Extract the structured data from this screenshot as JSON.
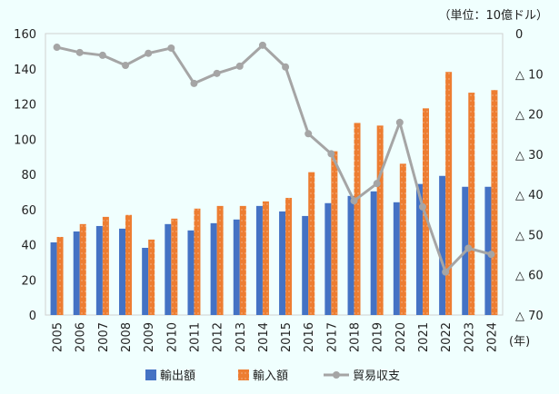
{
  "chart_data": {
    "type": "bar+line",
    "unit_label": "（単位：10億ドル）",
    "x_unit_label": "(年)",
    "categories": [
      "2005",
      "2006",
      "2007",
      "2008",
      "2009",
      "2010",
      "2011",
      "2012",
      "2013",
      "2014",
      "2015",
      "2016",
      "2017",
      "2018",
      "2019",
      "2020",
      "2021",
      "2022",
      "2023",
      "2024"
    ],
    "series": [
      {
        "name": "輸出額",
        "type": "bar",
        "axis": "left",
        "color": "#4472c4",
        "values": [
          41.3,
          47.5,
          50.6,
          49.1,
          38.2,
          51.7,
          48.1,
          52.2,
          54.3,
          62.0,
          58.9,
          56.3,
          63.6,
          67.7,
          70.3,
          64.1,
          74.5,
          79.1,
          72.9,
          72.9
        ]
      },
      {
        "name": "輸入額",
        "type": "bar",
        "axis": "left",
        "color": "#ed7d31",
        "values": [
          44.4,
          51.7,
          55.8,
          56.9,
          42.9,
          54.8,
          60.5,
          62.0,
          62.0,
          64.6,
          66.6,
          81.2,
          93.1,
          109.2,
          107.7,
          86.0,
          117.5,
          138.2,
          126.4,
          127.9
        ]
      },
      {
        "name": "貿易収支",
        "type": "line",
        "axis": "right",
        "color": "#a5a5a5",
        "values": [
          -3.4,
          -4.7,
          -5.4,
          -7.9,
          -4.9,
          -3.6,
          -12.4,
          -9.9,
          -8.1,
          -2.9,
          -8.3,
          -24.9,
          -29.9,
          -41.6,
          -37.3,
          -22.1,
          -43.1,
          -59.3,
          -53.4,
          -54.9
        ]
      }
    ],
    "left_axis": {
      "ylim": [
        0,
        160
      ],
      "ticks": [
        "0",
        "20",
        "40",
        "60",
        "80",
        "100",
        "120",
        "140",
        "160"
      ]
    },
    "right_axis": {
      "ylim": [
        0,
        -70
      ],
      "inverted": true,
      "ticks": [
        "0",
        "△ 10",
        "△ 20",
        "△ 30",
        "△ 40",
        "△ 50",
        "△ 60",
        "△ 70"
      ]
    },
    "legend_position": "bottom",
    "grid": false
  }
}
